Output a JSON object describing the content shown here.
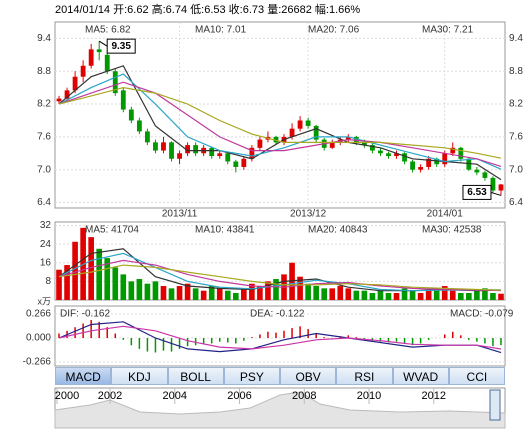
{
  "title": "2014/01/14 开:6.62 高:6.74 低:6.53 收:6.73 量:26682 幅:1.66%",
  "chart_data": [
    {
      "type": "candlestick",
      "up_color": "#e00000",
      "down_color": "#009900",
      "grid": true,
      "ylim": [
        6.3,
        9.7
      ],
      "yticks": [
        9.4,
        8.8,
        8.2,
        7.6,
        {
          "value": 7.0,
          "label": "7.0"
        },
        6.4
      ],
      "xticks": [
        {
          "value": 15,
          "label": "2013/11"
        },
        {
          "value": 31,
          "label": "2013/12"
        },
        {
          "value": 48,
          "label": "2014/01"
        }
      ],
      "candles": [
        [
          8.25,
          8.35,
          8.2,
          8.3
        ],
        [
          8.3,
          8.5,
          8.25,
          8.45
        ],
        [
          8.45,
          8.8,
          8.4,
          8.7
        ],
        [
          8.7,
          9.0,
          8.6,
          8.9
        ],
        [
          8.9,
          9.3,
          8.85,
          9.2
        ],
        [
          9.2,
          9.35,
          9.0,
          9.15
        ],
        [
          9.1,
          9.15,
          8.75,
          8.8
        ],
        [
          8.8,
          8.85,
          8.35,
          8.4
        ],
        [
          8.45,
          8.5,
          8.05,
          8.1
        ],
        [
          8.1,
          8.15,
          7.85,
          7.9
        ],
        [
          7.9,
          7.95,
          7.65,
          7.7
        ],
        [
          7.7,
          7.75,
          7.45,
          7.5
        ],
        [
          7.5,
          7.55,
          7.3,
          7.35
        ],
        [
          7.35,
          7.6,
          7.3,
          7.5
        ],
        [
          7.5,
          7.52,
          7.15,
          7.2
        ],
        [
          7.2,
          7.35,
          7.1,
          7.3
        ],
        [
          7.3,
          7.5,
          7.25,
          7.45
        ],
        [
          7.45,
          7.5,
          7.25,
          7.3
        ],
        [
          7.3,
          7.45,
          7.25,
          7.4
        ],
        [
          7.4,
          7.42,
          7.2,
          7.25
        ],
        [
          7.25,
          7.35,
          7.2,
          7.3
        ],
        [
          7.3,
          7.32,
          7.1,
          7.15
        ],
        [
          7.15,
          7.18,
          6.95,
          7.05
        ],
        [
          7.05,
          7.25,
          7.0,
          7.2
        ],
        [
          7.2,
          7.45,
          7.15,
          7.4
        ],
        [
          7.4,
          7.6,
          7.35,
          7.55
        ],
        [
          7.55,
          7.7,
          7.5,
          7.6
        ],
        [
          7.6,
          7.62,
          7.45,
          7.5
        ],
        [
          7.5,
          7.65,
          7.45,
          7.6
        ],
        [
          7.6,
          7.85,
          7.55,
          7.75
        ],
        [
          7.75,
          7.98,
          7.7,
          7.9
        ],
        [
          7.9,
          7.95,
          7.75,
          7.8
        ],
        [
          7.8,
          7.82,
          7.5,
          7.55
        ],
        [
          7.55,
          7.58,
          7.35,
          7.4
        ],
        [
          7.4,
          7.55,
          7.38,
          7.5
        ],
        [
          7.5,
          7.6,
          7.45,
          7.55
        ],
        [
          7.55,
          7.65,
          7.5,
          7.6
        ],
        [
          7.6,
          7.62,
          7.45,
          7.5
        ],
        [
          7.5,
          7.55,
          7.4,
          7.45
        ],
        [
          7.45,
          7.48,
          7.3,
          7.35
        ],
        [
          7.35,
          7.4,
          7.25,
          7.3
        ],
        [
          7.3,
          7.33,
          7.2,
          7.25
        ],
        [
          7.25,
          7.35,
          7.2,
          7.3
        ],
        [
          7.3,
          7.32,
          7.1,
          7.15
        ],
        [
          7.15,
          7.18,
          6.95,
          7.0
        ],
        [
          7.0,
          7.1,
          6.95,
          7.05
        ],
        [
          7.05,
          7.25,
          7.0,
          7.2
        ],
        [
          7.2,
          7.22,
          7.05,
          7.1
        ],
        [
          7.1,
          7.35,
          7.05,
          7.3
        ],
        [
          7.3,
          7.5,
          7.25,
          7.4
        ],
        [
          7.4,
          7.42,
          7.15,
          7.2
        ],
        [
          7.2,
          7.22,
          6.98,
          7.0
        ],
        [
          7.0,
          7.05,
          6.9,
          6.95
        ],
        [
          6.95,
          6.98,
          6.8,
          6.85
        ],
        [
          6.85,
          6.88,
          6.58,
          6.62
        ],
        [
          6.62,
          6.74,
          6.53,
          6.73
        ]
      ],
      "ma_x": [
        0,
        4,
        8,
        12,
        16,
        20,
        24,
        28,
        32,
        36,
        40,
        44,
        48,
        52,
        55
      ],
      "series": [
        {
          "legend": "MA5: 6.82",
          "color": "#333333",
          "values": [
            8.2,
            8.7,
            8.9,
            7.8,
            7.35,
            7.35,
            7.2,
            7.55,
            7.75,
            7.5,
            7.4,
            7.2,
            7.15,
            7.1,
            6.82
          ]
        },
        {
          "legend": "MA10: 7.01",
          "color": "#2aa5c9",
          "values": [
            8.2,
            8.5,
            8.75,
            8.2,
            7.6,
            7.35,
            7.25,
            7.4,
            7.6,
            7.6,
            7.45,
            7.3,
            7.15,
            7.2,
            7.01
          ]
        },
        {
          "legend": "MA20: 7.06",
          "color": "#c0399f",
          "values": [
            8.2,
            8.4,
            8.6,
            8.4,
            8.0,
            7.6,
            7.35,
            7.35,
            7.45,
            7.55,
            7.5,
            7.4,
            7.3,
            7.2,
            7.06
          ]
        },
        {
          "legend": "MA30: 7.21",
          "color": "#a8a820",
          "values": [
            8.2,
            8.35,
            8.5,
            8.4,
            8.2,
            7.9,
            7.65,
            7.5,
            7.5,
            7.5,
            7.5,
            7.45,
            7.4,
            7.3,
            7.21
          ]
        }
      ]
    },
    {
      "type": "volume",
      "unit": "x万",
      "grid": true,
      "ylim": [
        0,
        33.5
      ],
      "yticks": [
        32,
        24,
        16,
        8
      ],
      "values": [
        13,
        15,
        25,
        31,
        27,
        22,
        18,
        14,
        11,
        8,
        9,
        7,
        8,
        6,
        5,
        6,
        7,
        5,
        4,
        6,
        5,
        4,
        3,
        5,
        7,
        6,
        8,
        9,
        11,
        16,
        10,
        7,
        6,
        5,
        5,
        6,
        5,
        4,
        4,
        3,
        4,
        3,
        3,
        5,
        4,
        3,
        4,
        5,
        6,
        4,
        3,
        3,
        4,
        5,
        3,
        2.7
      ],
      "ma_x": [
        0,
        4,
        8,
        12,
        16,
        20,
        24,
        28,
        32,
        36,
        40,
        44,
        48,
        52,
        55
      ],
      "series": [
        {
          "legend": "MA5: 41704",
          "color": "#333333",
          "values": [
            10,
            20,
            22,
            10,
            6,
            5,
            4.5,
            8,
            9,
            5.5,
            4,
            4,
            4.5,
            4,
            4.1704
          ]
        },
        {
          "legend": "MA10: 43841",
          "color": "#2aa5c9",
          "values": [
            10,
            17,
            20,
            14,
            8,
            5.5,
            4.8,
            6.5,
            8.5,
            7,
            4.5,
            4,
            4.2,
            4.3,
            4.3841
          ]
        },
        {
          "legend": "MA20: 40843",
          "color": "#c0399f",
          "values": [
            10,
            14,
            17,
            15,
            11,
            8,
            6,
            5.5,
            7,
            7.5,
            6,
            5,
            4.5,
            4.2,
            4.0843
          ]
        },
        {
          "legend": "MA30: 42538",
          "color": "#a8a820",
          "values": [
            10,
            12,
            15,
            14,
            12,
            10,
            8,
            6.5,
            6.5,
            7,
            6.5,
            5.5,
            5,
            4.5,
            4.2538
          ]
        }
      ]
    },
    {
      "type": "macd",
      "pos_color": "#e00000",
      "neg_color": "#009900",
      "ylim": [
        -0.31,
        0.355
      ],
      "yticks": [
        0.266,
        {
          "value": 0,
          "label": "0.000"
        },
        -0.266
      ],
      "legend": "MACD: -0.079",
      "values": [
        0.05,
        0.08,
        0.12,
        0.16,
        0.2,
        0.18,
        0.12,
        0.05,
        -0.02,
        -0.08,
        -0.12,
        -0.15,
        -0.16,
        -0.14,
        -0.15,
        -0.12,
        -0.09,
        -0.08,
        -0.06,
        -0.06,
        -0.04,
        -0.05,
        -0.06,
        -0.03,
        0.01,
        0.04,
        0.07,
        0.06,
        0.08,
        0.11,
        0.13,
        0.1,
        0.05,
        0.01,
        0.0,
        0.02,
        0.03,
        0.01,
        -0.01,
        -0.03,
        -0.04,
        -0.05,
        -0.04,
        -0.06,
        -0.08,
        -0.06,
        -0.02,
        0.0,
        0.04,
        0.07,
        0.03,
        -0.02,
        -0.04,
        -0.06,
        -0.09,
        -0.079
      ],
      "ma_x": [
        0,
        4,
        8,
        12,
        16,
        20,
        24,
        28,
        32,
        36,
        40,
        44,
        48,
        52,
        55
      ],
      "series": [
        {
          "legend": "DIF: -0.162",
          "color": "#222288",
          "values": [
            0.0,
            0.15,
            0.18,
            0.0,
            -0.12,
            -0.15,
            -0.12,
            -0.02,
            0.05,
            0.0,
            -0.05,
            -0.1,
            -0.08,
            -0.08,
            -0.162
          ]
        },
        {
          "legend": "DEA: -0.122",
          "color": "#cc33aa",
          "values": [
            0.0,
            0.08,
            0.13,
            0.08,
            -0.03,
            -0.1,
            -0.12,
            -0.08,
            -0.02,
            0.0,
            -0.03,
            -0.07,
            -0.08,
            -0.08,
            -0.122
          ]
        }
      ]
    }
  ],
  "tabs": [
    "MACD",
    "KDJ",
    "BOLL",
    "PSY",
    "OBV",
    "RSI",
    "WVAD",
    "CCI"
  ],
  "timeline": {
    "xlim": [
      2000.3,
      2014.2
    ],
    "xticks": [
      2000,
      2002,
      2004,
      2006,
      2008,
      2010,
      2012
    ]
  }
}
